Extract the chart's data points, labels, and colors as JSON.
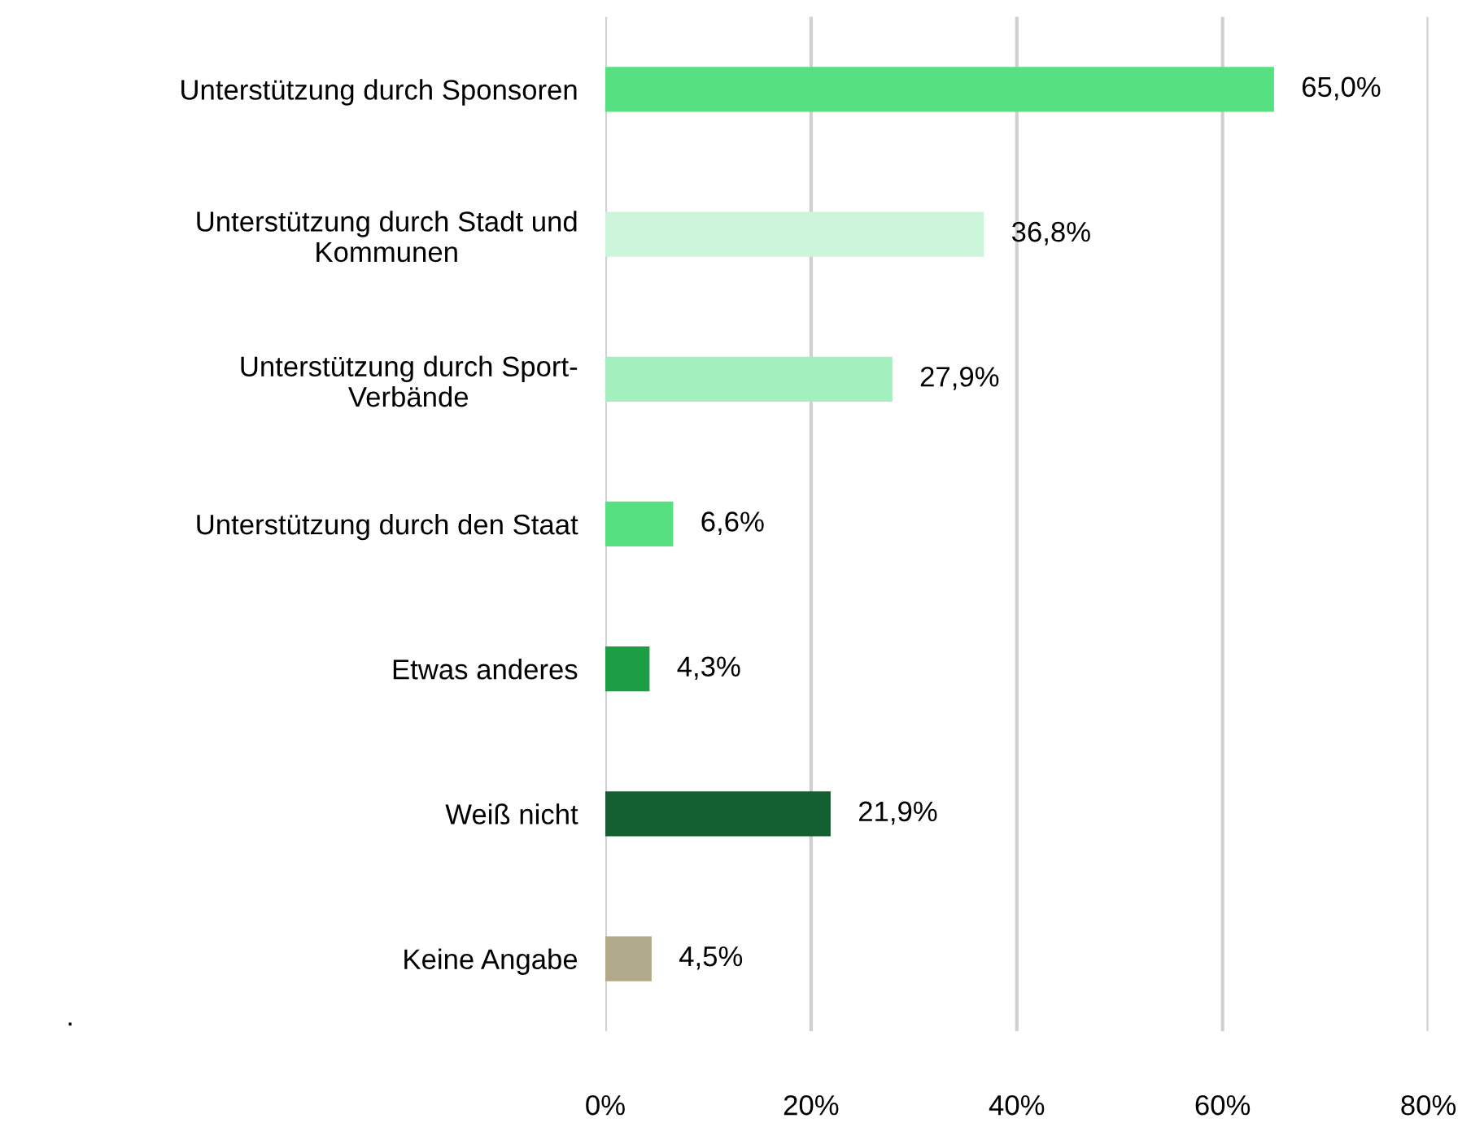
{
  "chart_data": {
    "type": "bar",
    "orientation": "horizontal",
    "categories": [
      "Unterstützung durch Sponsoren",
      "Unterstützung durch Stadt und\nKommunen",
      "Unterstützung durch Sport-\nVerbände",
      "Unterstützung durch den Staat",
      "Etwas anderes",
      "Weiß nicht",
      "Keine Angabe"
    ],
    "values": [
      65.0,
      36.8,
      27.9,
      6.6,
      4.3,
      21.9,
      4.5
    ],
    "value_labels": [
      "65,0%",
      "36,8%",
      "27,9%",
      "6,6%",
      "4,3%",
      "21,9%",
      "4,5%"
    ],
    "colors": [
      "#57e082",
      "#cdf5dc",
      "#a3efbe",
      "#57e082",
      "#1e9e44",
      "#146030",
      "#b0a98a"
    ],
    "xlim": [
      0,
      80
    ],
    "xticks": [
      {
        "value": 0,
        "label": "0%"
      },
      {
        "value": 20,
        "label": "20%"
      },
      {
        "value": 40,
        "label": "40%"
      },
      {
        "value": 60,
        "label": "60%"
      },
      {
        "value": 80,
        "label": "80%"
      }
    ],
    "grid": "x",
    "legend": false,
    "annotations": [
      "."
    ]
  }
}
